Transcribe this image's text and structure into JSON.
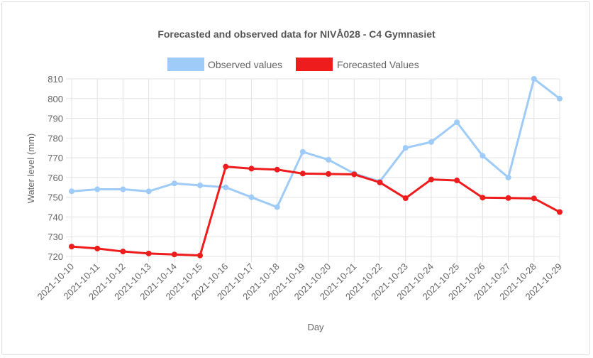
{
  "chart_data": {
    "type": "line",
    "title": "Forecasted and observed data for NIVÅ028 - C4 Gymnasiet",
    "xlabel": "Day",
    "ylabel": "Water level (mm)",
    "ylim": [
      720,
      810
    ],
    "yticks": [
      720,
      730,
      740,
      750,
      760,
      770,
      780,
      790,
      800,
      810
    ],
    "grid": true,
    "legend_position": "top",
    "categories": [
      "2021-10-10",
      "2021-10-11",
      "2021-10-12",
      "2021-10-13",
      "2021-10-14",
      "2021-10-15",
      "2021-10-16",
      "2021-10-17",
      "2021-10-18",
      "2021-10-19",
      "2021-10-20",
      "2021-10-21",
      "2021-10-22",
      "2021-10-23",
      "2021-10-24",
      "2021-10-25",
      "2021-10-26",
      "2021-10-27",
      "2021-10-28",
      "2021-10-29"
    ],
    "series": [
      {
        "name": "Observed values",
        "color": "#9ecbf7",
        "values": [
          753,
          754,
          754,
          753,
          757,
          756,
          755,
          750,
          745,
          773,
          769,
          762,
          758,
          775,
          778,
          788,
          771,
          760,
          810,
          800
        ]
      },
      {
        "name": "Forecasted Values",
        "color": "#ee1c1c",
        "values": [
          725,
          724,
          722.5,
          721.5,
          721,
          720.5,
          765.5,
          764.5,
          764,
          762,
          761.8,
          761.6,
          757.5,
          749.5,
          759,
          758.5,
          749.8,
          749.6,
          749.4,
          742.5
        ]
      }
    ]
  }
}
